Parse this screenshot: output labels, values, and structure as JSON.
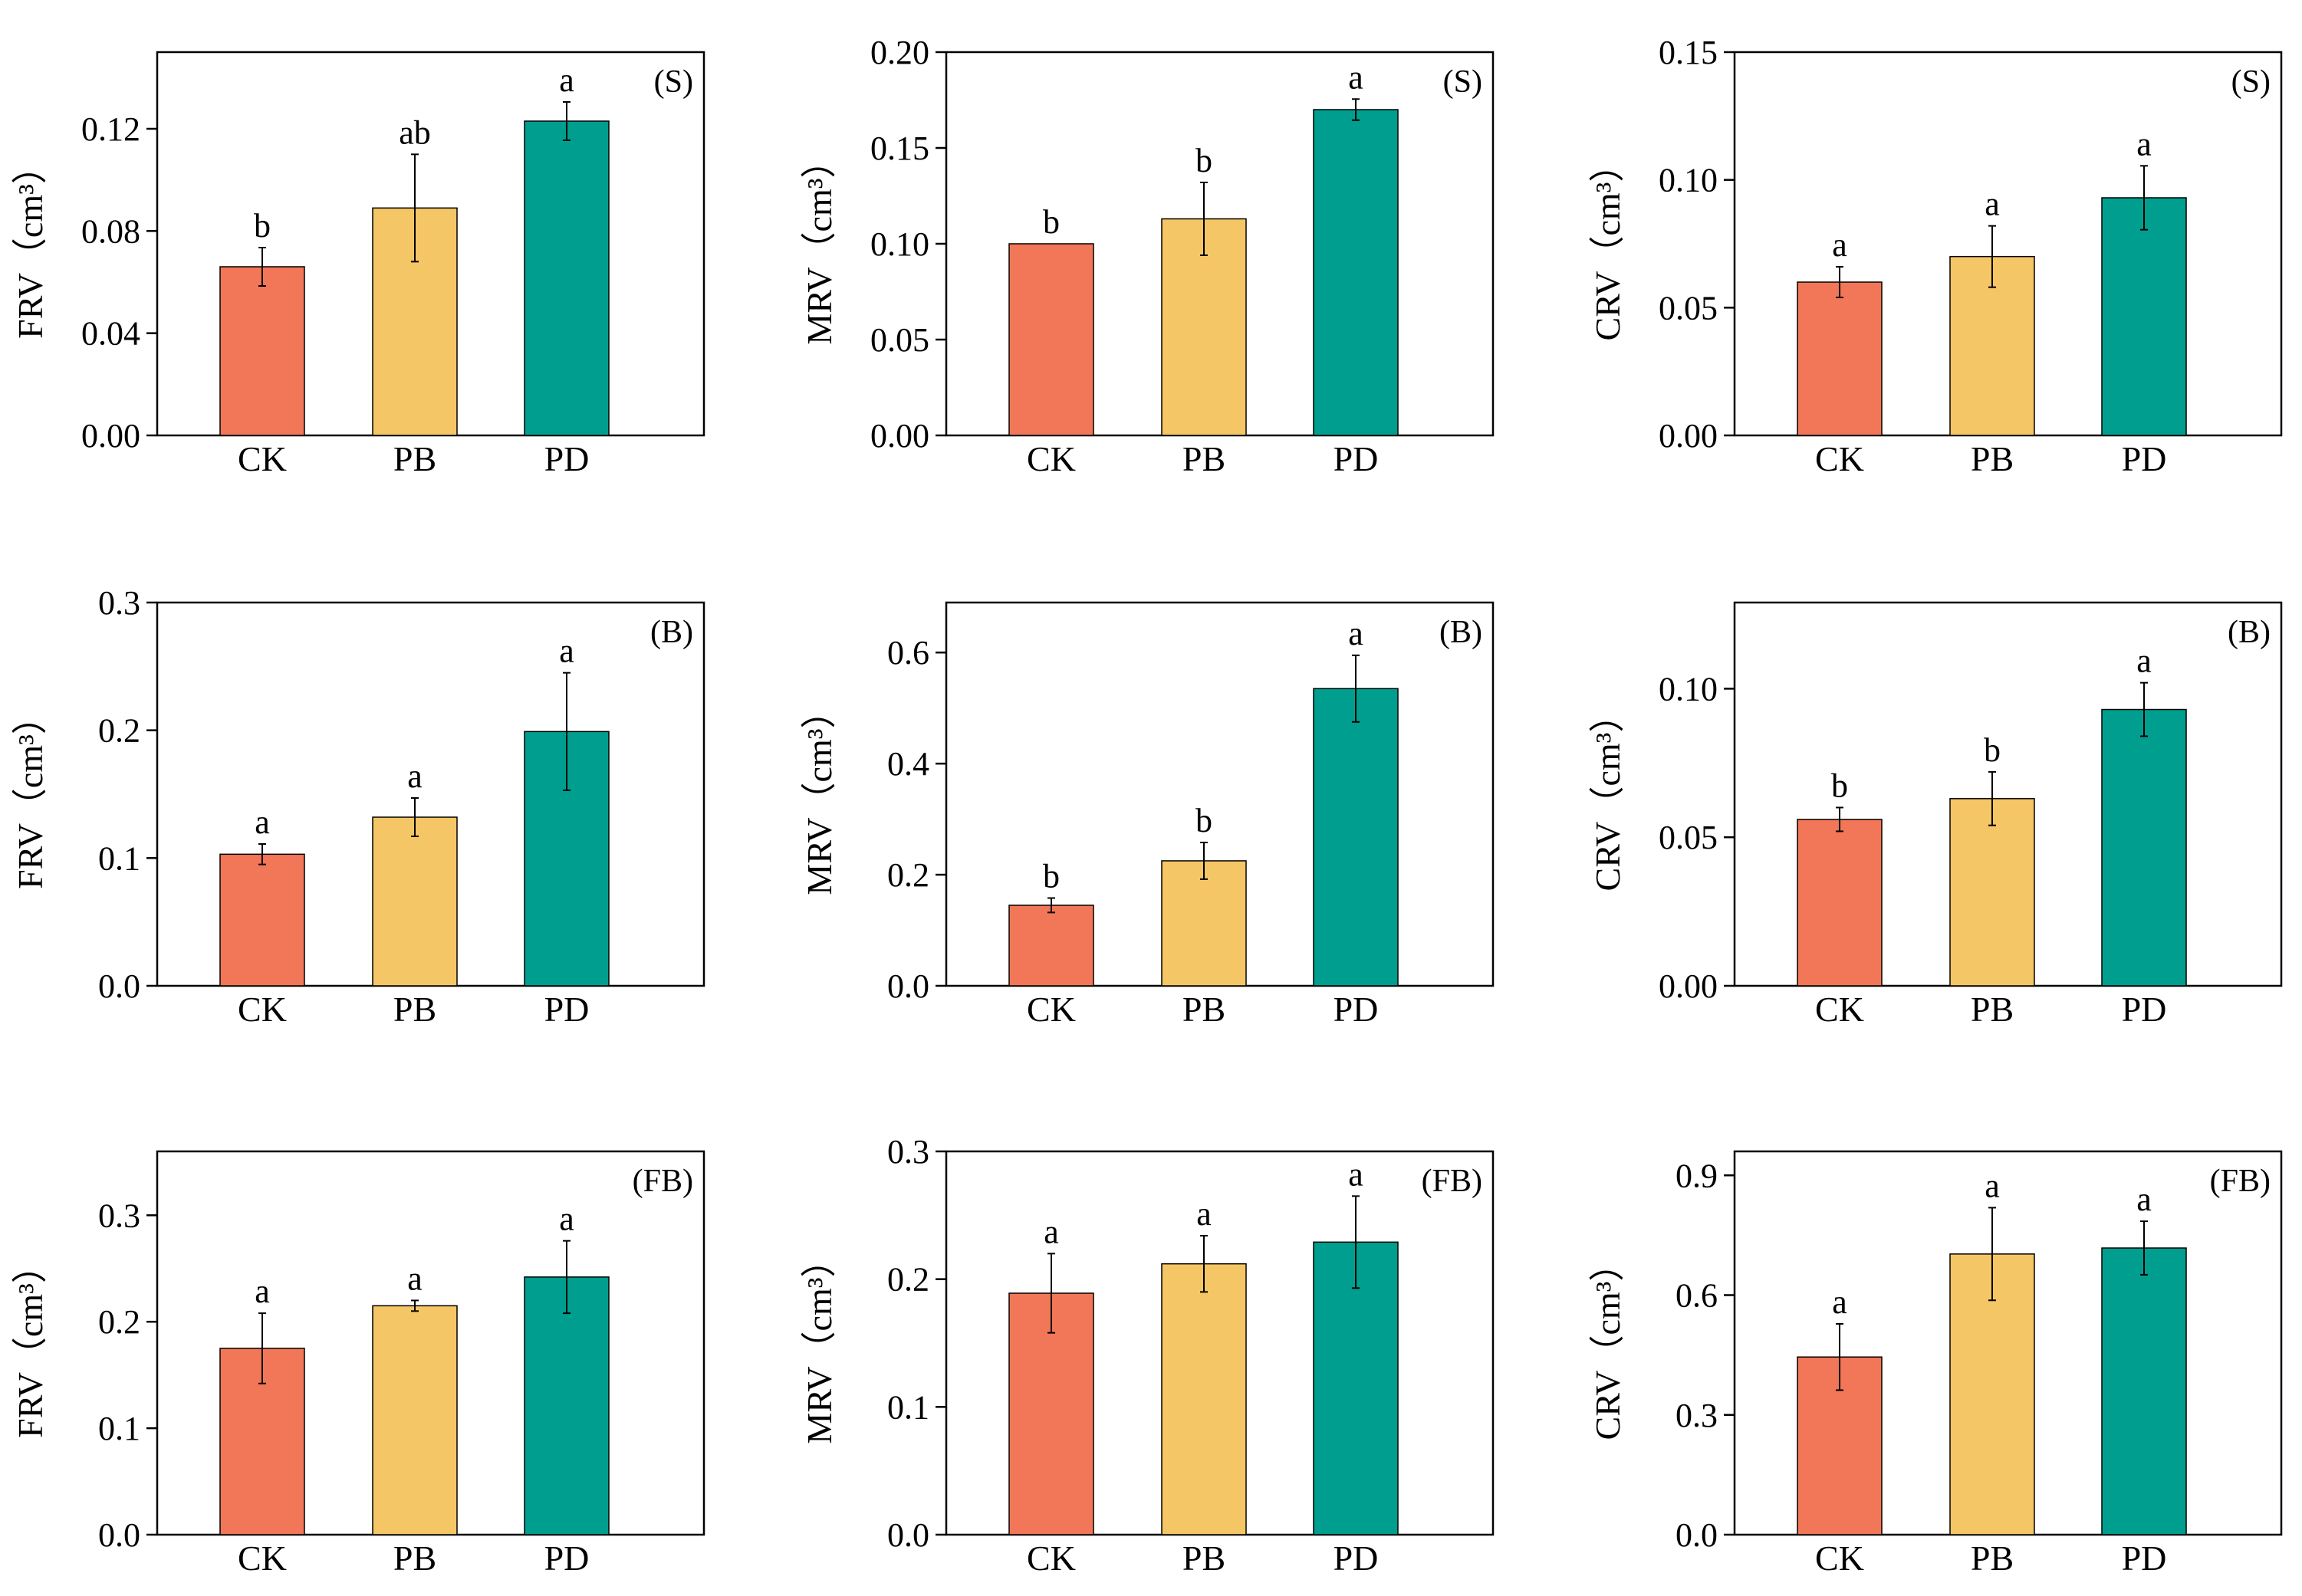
{
  "colors": {
    "CK": "#f27658",
    "PB": "#f5c665",
    "PD": "#009e8e"
  },
  "chart_data": [
    {
      "type": "bar",
      "panel": "(S)",
      "ylabel": "FRV（cm³）",
      "categories": [
        "CK",
        "PB",
        "PD"
      ],
      "values": [
        0.066,
        0.089,
        0.123
      ],
      "errors": [
        0.0075,
        0.021,
        0.0075
      ],
      "letters": [
        "b",
        "ab",
        "a"
      ],
      "ylim": [
        0,
        0.15
      ],
      "yticks": [
        0.0,
        0.04,
        0.08,
        0.12
      ],
      "ytick_labels": [
        "0.00",
        "0.04",
        "0.08",
        "0.12"
      ]
    },
    {
      "type": "bar",
      "panel": "(S)",
      "ylabel": "MRV（cm³）",
      "categories": [
        "CK",
        "PB",
        "PD"
      ],
      "values": [
        0.1,
        0.113,
        0.17
      ],
      "errors": [
        0.0,
        0.019,
        0.0055
      ],
      "letters": [
        "b",
        "b",
        "a"
      ],
      "ylim": [
        0,
        0.2
      ],
      "yticks": [
        0.0,
        0.05,
        0.1,
        0.15,
        0.2
      ],
      "ytick_labels": [
        "0.00",
        "0.05",
        "0.10",
        "0.15",
        "0.20"
      ]
    },
    {
      "type": "bar",
      "panel": "(S)",
      "ylabel": "CRV（cm³）",
      "categories": [
        "CK",
        "PB",
        "PD"
      ],
      "values": [
        0.06,
        0.07,
        0.093
      ],
      "errors": [
        0.006,
        0.012,
        0.0125
      ],
      "letters": [
        "a",
        "a",
        "a"
      ],
      "ylim": [
        0,
        0.15
      ],
      "yticks": [
        0.0,
        0.05,
        0.1,
        0.15
      ],
      "ytick_labels": [
        "0.00",
        "0.05",
        "0.10",
        "0.15"
      ]
    },
    {
      "type": "bar",
      "panel": "(B)",
      "ylabel": "FRV（cm³）",
      "categories": [
        "CK",
        "PB",
        "PD"
      ],
      "values": [
        0.103,
        0.132,
        0.199
      ],
      "errors": [
        0.008,
        0.015,
        0.046
      ],
      "letters": [
        "a",
        "a",
        "a"
      ],
      "ylim": [
        0,
        0.3
      ],
      "yticks": [
        0.0,
        0.1,
        0.2,
        0.3
      ],
      "ytick_labels": [
        "0.0",
        "0.1",
        "0.2",
        "0.3"
      ]
    },
    {
      "type": "bar",
      "panel": "(B)",
      "ylabel": "MRV（cm³）",
      "categories": [
        "CK",
        "PB",
        "PD"
      ],
      "values": [
        0.145,
        0.225,
        0.535
      ],
      "errors": [
        0.013,
        0.033,
        0.06
      ],
      "letters": [
        "b",
        "b",
        "a"
      ],
      "ylim": [
        0,
        0.69
      ],
      "yticks": [
        0.0,
        0.2,
        0.4,
        0.6
      ],
      "ytick_labels": [
        "0.0",
        "0.2",
        "0.4",
        "0.6"
      ]
    },
    {
      "type": "bar",
      "panel": "(B)",
      "ylabel": "CRV（cm³）",
      "categories": [
        "CK",
        "PB",
        "PD"
      ],
      "values": [
        0.056,
        0.063,
        0.093
      ],
      "errors": [
        0.004,
        0.009,
        0.009
      ],
      "letters": [
        "b",
        "b",
        "a"
      ],
      "ylim": [
        0,
        0.129
      ],
      "yticks": [
        0.0,
        0.05,
        0.1
      ],
      "ytick_labels": [
        "0.00",
        "0.05",
        "0.10"
      ]
    },
    {
      "type": "bar",
      "panel": "(FB)",
      "ylabel": "FRV（cm³）",
      "categories": [
        "CK",
        "PB",
        "PD"
      ],
      "values": [
        0.175,
        0.215,
        0.242
      ],
      "errors": [
        0.033,
        0.005,
        0.034
      ],
      "letters": [
        "a",
        "a",
        "a"
      ],
      "ylim": [
        0,
        0.36
      ],
      "yticks": [
        0.0,
        0.1,
        0.2,
        0.3
      ],
      "ytick_labels": [
        "0.0",
        "0.1",
        "0.2",
        "0.3"
      ]
    },
    {
      "type": "bar",
      "panel": "(FB)",
      "ylabel": "MRV（cm³）",
      "categories": [
        "CK",
        "PB",
        "PD"
      ],
      "values": [
        0.189,
        0.212,
        0.229
      ],
      "errors": [
        0.031,
        0.022,
        0.036
      ],
      "letters": [
        "a",
        "a",
        "a"
      ],
      "ylim": [
        0,
        0.3
      ],
      "yticks": [
        0.0,
        0.1,
        0.2,
        0.3
      ],
      "ytick_labels": [
        "0.0",
        "0.1",
        "0.2",
        "0.3"
      ]
    },
    {
      "type": "bar",
      "panel": "(FB)",
      "ylabel": "CRV（cm³）",
      "categories": [
        "CK",
        "PB",
        "PD"
      ],
      "values": [
        0.445,
        0.703,
        0.718
      ],
      "errors": [
        0.083,
        0.116,
        0.067
      ],
      "letters": [
        "a",
        "a",
        "a"
      ],
      "ylim": [
        0,
        0.96
      ],
      "yticks": [
        0.0,
        0.3,
        0.6,
        0.9
      ],
      "ytick_labels": [
        "0.0",
        "0.3",
        "0.6",
        "0.9"
      ]
    }
  ]
}
